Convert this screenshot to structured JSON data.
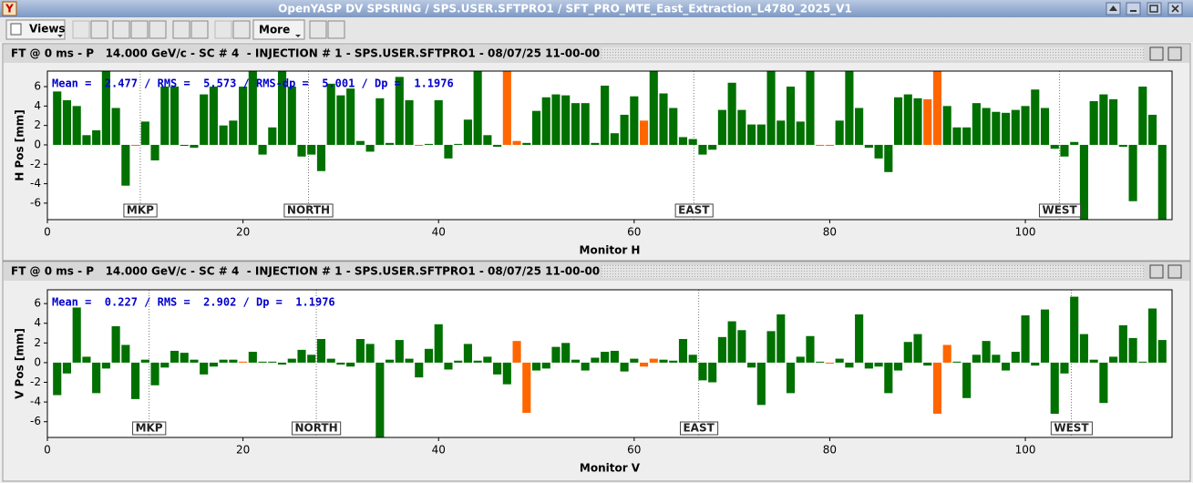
{
  "window": {
    "title": "OpenYASP DV SPSRING / SPS.USER.SFTPRO1 / SFT_PRO_MTE_East_Extraction_L4780_2025_V1"
  },
  "toolbar": {
    "views": "Views",
    "more": "More"
  },
  "panels": [
    {
      "header": "FT @ 0 ms - P   14.000 GeV/c - SC # 4  - INJECTION # 1 - SPS.USER.SFTPRO1 - 08/07/25 11-00-00"
    },
    {
      "header": "FT @ 0 ms - P   14.000 GeV/c - SC # 4  - INJECTION # 1 - SPS.USER.SFTPRO1 - 08/07/25 11-00-00"
    }
  ],
  "chart_data": [
    {
      "type": "bar",
      "stats": "Mean =  2.477 / RMS =  5.573 / RMS-dp =  5.001 / Dp =  1.1976",
      "xlabel": "Monitor H",
      "ylabel": "H Pos [mm]",
      "xlim": [
        0,
        115
      ],
      "ylim": [
        -7.7,
        7.6
      ],
      "xticks": [
        0,
        20,
        40,
        60,
        80,
        100
      ],
      "yticks": [
        -6,
        -4,
        -2,
        0,
        2,
        4,
        6
      ],
      "markers": [
        {
          "label": "MKP",
          "x": 9.5
        },
        {
          "label": "NORTH",
          "x": 26.7
        },
        {
          "label": "EAST",
          "x": 66.1
        },
        {
          "label": "WEST",
          "x": 103.5
        }
      ],
      "x": [
        1,
        2,
        3,
        4,
        5,
        6,
        7,
        8,
        9,
        10,
        11,
        12,
        13,
        14,
        15,
        16,
        17,
        18,
        19,
        20,
        21,
        22,
        23,
        24,
        25,
        26,
        27,
        28,
        29,
        30,
        31,
        32,
        33,
        34,
        35,
        36,
        37,
        38,
        39,
        40,
        41,
        42,
        43,
        44,
        45,
        46,
        47,
        48,
        49,
        50,
        51,
        52,
        53,
        54,
        55,
        56,
        57,
        58,
        59,
        60,
        61,
        62,
        63,
        64,
        65,
        66,
        67,
        68,
        69,
        70,
        71,
        72,
        73,
        74,
        75,
        76,
        77,
        78,
        79,
        80,
        81,
        82,
        83,
        84,
        85,
        86,
        87,
        88,
        89,
        90,
        91,
        92,
        93,
        94,
        95,
        96,
        97,
        98,
        99,
        100,
        101,
        102,
        103,
        104,
        105,
        106,
        107,
        108,
        109,
        110,
        111,
        112,
        113,
        114
      ],
      "values": [
        5.5,
        4.6,
        4.0,
        1.0,
        1.5,
        7.6,
        3.8,
        -4.2,
        0,
        2.4,
        -1.6,
        6.0,
        6.0,
        -0.1,
        -0.3,
        5.2,
        6.0,
        2.0,
        2.5,
        6.0,
        7.6,
        -1.0,
        1.8,
        7.6,
        6.0,
        -1.2,
        -1.0,
        -2.7,
        6.3,
        5.1,
        5.8,
        0.4,
        -0.7,
        4.8,
        0.2,
        7.0,
        4.6,
        0,
        0.1,
        4.6,
        -1.4,
        0.1,
        2.6,
        7.6,
        1.0,
        -0.2,
        7.6,
        0.4,
        0.2,
        3.5,
        4.9,
        5.2,
        5.1,
        4.3,
        4.3,
        0.2,
        6.1,
        1.2,
        3.1,
        5.0,
        2.5,
        7.6,
        5.3,
        3.8,
        0.8,
        0.6,
        -1.0,
        -0.5,
        3.6,
        6.4,
        3.6,
        2.1,
        2.1,
        7.6,
        2.5,
        6.0,
        2.4,
        7.6,
        0,
        0,
        2.5,
        7.6,
        3.8,
        -0.3,
        -1.4,
        -2.8,
        4.9,
        5.2,
        4.8,
        4.7,
        7.6,
        4.0,
        1.8,
        1.8,
        4.3,
        3.8,
        3.4,
        3.3,
        3.6,
        4.0,
        5.7,
        3.8,
        -0.4,
        -1.2,
        0.3,
        -7.7,
        4.5,
        5.2,
        4.7,
        -0.2,
        -5.8,
        6.0,
        3.1,
        -7.7
      ],
      "colors": [
        "#007000",
        "#007000",
        "#007000",
        "#007000",
        "#007000",
        "#007000",
        "#007000",
        "#007000",
        "#ff6600",
        "#007000",
        "#007000",
        "#007000",
        "#007000",
        "#007000",
        "#007000",
        "#007000",
        "#007000",
        "#007000",
        "#007000",
        "#007000",
        "#007000",
        "#007000",
        "#007000",
        "#007000",
        "#007000",
        "#007000",
        "#007000",
        "#007000",
        "#007000",
        "#007000",
        "#007000",
        "#007000",
        "#007000",
        "#007000",
        "#007000",
        "#007000",
        "#007000",
        "#ff6600",
        "#007000",
        "#007000",
        "#007000",
        "#007000",
        "#007000",
        "#007000",
        "#007000",
        "#007000",
        "#ff6600",
        "#ff6600",
        "#007000",
        "#007000",
        "#007000",
        "#007000",
        "#007000",
        "#007000",
        "#007000",
        "#007000",
        "#007000",
        "#007000",
        "#007000",
        "#007000",
        "#ff6600",
        "#007000",
        "#007000",
        "#007000",
        "#007000",
        "#007000",
        "#007000",
        "#007000",
        "#007000",
        "#007000",
        "#007000",
        "#007000",
        "#007000",
        "#007000",
        "#007000",
        "#007000",
        "#007000",
        "#007000",
        "#ff6600",
        "#ff6600",
        "#007000",
        "#007000",
        "#007000",
        "#007000",
        "#007000",
        "#007000",
        "#007000",
        "#007000",
        "#007000",
        "#ff6600",
        "#ff6600",
        "#007000",
        "#007000",
        "#007000",
        "#007000",
        "#007000",
        "#007000",
        "#007000",
        "#007000",
        "#007000",
        "#007000",
        "#007000",
        "#007000",
        "#007000",
        "#007000",
        "#007000",
        "#007000",
        "#007000",
        "#007000",
        "#007000",
        "#007000",
        "#007000",
        "#007000",
        "#007000"
      ]
    },
    {
      "type": "bar",
      "stats": "Mean =  0.227 / RMS =  2.902 / Dp =  1.1976",
      "xlabel": "Monitor V",
      "ylabel": "V Pos [mm]",
      "xlim": [
        0,
        115
      ],
      "ylim": [
        -7.6,
        7.4
      ],
      "xticks": [
        0,
        20,
        40,
        60,
        80,
        100
      ],
      "yticks": [
        -6,
        -4,
        -2,
        0,
        2,
        4,
        6
      ],
      "markers": [
        {
          "label": "MKP",
          "x": 10.4
        },
        {
          "label": "NORTH",
          "x": 27.5
        },
        {
          "label": "EAST",
          "x": 66.6
        },
        {
          "label": "WEST",
          "x": 104.7
        }
      ],
      "x": [
        1,
        2,
        3,
        4,
        5,
        6,
        7,
        8,
        9,
        10,
        11,
        12,
        13,
        14,
        15,
        16,
        17,
        18,
        19,
        20,
        21,
        22,
        23,
        24,
        25,
        26,
        27,
        28,
        29,
        30,
        31,
        32,
        33,
        34,
        35,
        36,
        37,
        38,
        39,
        40,
        41,
        42,
        43,
        44,
        45,
        46,
        47,
        48,
        49,
        50,
        51,
        52,
        53,
        54,
        55,
        56,
        57,
        58,
        59,
        60,
        61,
        62,
        63,
        64,
        65,
        66,
        67,
        68,
        69,
        70,
        71,
        72,
        73,
        74,
        75,
        76,
        77,
        78,
        79,
        80,
        81,
        82,
        83,
        84,
        85,
        86,
        87,
        88,
        89,
        90,
        91,
        92,
        93,
        94,
        95,
        96,
        97,
        98,
        99,
        100,
        101,
        102,
        103,
        104,
        105,
        106,
        107,
        108,
        109,
        110,
        111,
        112,
        113,
        114
      ],
      "values": [
        -3.3,
        -1.1,
        5.6,
        0.6,
        -3.1,
        -0.6,
        3.7,
        1.8,
        -3.7,
        0.3,
        -2.3,
        -0.5,
        1.2,
        1.0,
        0.3,
        -1.2,
        -0.4,
        0.3,
        0.3,
        0.1,
        1.1,
        0.1,
        0.1,
        -0.2,
        0.4,
        1.3,
        0.8,
        2.4,
        0.4,
        -0.2,
        -0.4,
        2.4,
        1.9,
        -7.6,
        0.3,
        2.3,
        0.4,
        -1.5,
        1.4,
        3.9,
        -0.7,
        0.2,
        1.9,
        0.2,
        0.6,
        -1.2,
        -2.2,
        2.2,
        -5.1,
        -0.8,
        -0.6,
        1.6,
        2.0,
        0.3,
        -0.8,
        0.5,
        1.1,
        1.2,
        -0.9,
        0.4,
        -0.4,
        0.4,
        0.3,
        0.2,
        2.4,
        0.8,
        -1.8,
        -2.0,
        2.6,
        4.2,
        3.3,
        -0.5,
        -4.3,
        3.2,
        4.9,
        -3.1,
        0.6,
        2.7,
        0.1,
        0,
        0.4,
        -0.5,
        4.9,
        -0.6,
        -0.4,
        -3.1,
        -0.8,
        2.1,
        2.9,
        -0.3,
        -5.2,
        1.8,
        0.1,
        -3.6,
        0.8,
        2.2,
        0.8,
        -0.8,
        1.1,
        4.8,
        -0.3,
        5.4,
        -5.2,
        -1.1,
        6.7,
        2.9,
        0.3,
        -4.1,
        0.6,
        3.8,
        2.5,
        0.1,
        5.5,
        2.3
      ],
      "colors": [
        "#007000",
        "#007000",
        "#007000",
        "#007000",
        "#007000",
        "#007000",
        "#007000",
        "#007000",
        "#007000",
        "#007000",
        "#007000",
        "#007000",
        "#007000",
        "#007000",
        "#007000",
        "#007000",
        "#007000",
        "#007000",
        "#007000",
        "#ff6600",
        "#007000",
        "#007000",
        "#007000",
        "#007000",
        "#007000",
        "#007000",
        "#007000",
        "#007000",
        "#007000",
        "#007000",
        "#007000",
        "#007000",
        "#007000",
        "#007000",
        "#007000",
        "#007000",
        "#007000",
        "#007000",
        "#007000",
        "#007000",
        "#007000",
        "#007000",
        "#007000",
        "#007000",
        "#007000",
        "#007000",
        "#007000",
        "#ff6600",
        "#ff6600",
        "#007000",
        "#007000",
        "#007000",
        "#007000",
        "#007000",
        "#007000",
        "#007000",
        "#007000",
        "#007000",
        "#007000",
        "#007000",
        "#ff6600",
        "#ff6600",
        "#007000",
        "#007000",
        "#007000",
        "#007000",
        "#007000",
        "#007000",
        "#007000",
        "#007000",
        "#007000",
        "#007000",
        "#007000",
        "#007000",
        "#007000",
        "#007000",
        "#007000",
        "#007000",
        "#007000",
        "#ff6600",
        "#007000",
        "#007000",
        "#007000",
        "#007000",
        "#007000",
        "#007000",
        "#007000",
        "#007000",
        "#007000",
        "#007000",
        "#ff6600",
        "#ff6600",
        "#007000",
        "#007000",
        "#007000",
        "#007000",
        "#007000",
        "#007000",
        "#007000",
        "#007000",
        "#007000",
        "#007000",
        "#007000",
        "#007000",
        "#007000",
        "#007000",
        "#007000",
        "#007000",
        "#007000",
        "#007000",
        "#007000",
        "#007000",
        "#007000",
        "#007000"
      ]
    }
  ]
}
